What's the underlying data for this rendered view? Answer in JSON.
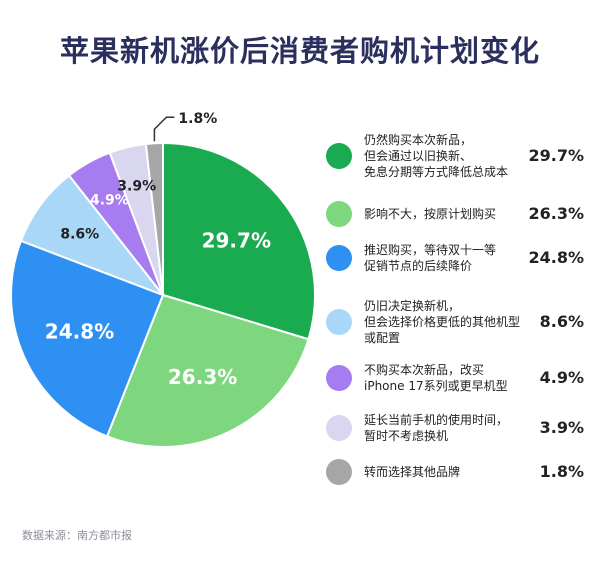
{
  "title": "苹果新机涨价后消费者购机计划变化",
  "source": "数据来源：南方都市报",
  "chart_data": {
    "type": "pie",
    "title": "苹果新机涨价后消费者购机计划变化",
    "value_labels": [
      "29.7%",
      "26.3%",
      "24.8%",
      "8.6%",
      "4.9%",
      "3.9%",
      "1.8%"
    ],
    "slices": [
      {
        "label": "仍然购买本次新品，但会通过以旧换新、免息分期等方式降低总成本",
        "label_lines": [
          "仍然购买本次新品，",
          "但会通过以旧换新、",
          "免息分期等方式降低总成本"
        ],
        "value": 29.7,
        "color": "#1aab50"
      },
      {
        "label": "影响不大，按原计划购买",
        "label_lines": [
          "影响不大，按原计划购买"
        ],
        "value": 26.3,
        "color": "#7ed67e"
      },
      {
        "label": "推迟购买，等待双十一等促销节点的后续降价",
        "label_lines": [
          "推迟购买，等待双十一等",
          "促销节点的后续降价"
        ],
        "value": 24.8,
        "color": "#2e90f2"
      },
      {
        "label": "仍旧决定换新机，但会选择价格更低的其他机型或配置",
        "label_lines": [
          "仍旧决定换新机，",
          "但会选择价格更低的其他机型",
          "或配置"
        ],
        "value": 8.6,
        "color": "#a9d7f7"
      },
      {
        "label": "不购买本次新品，改买iPhone 17系列或更早机型",
        "label_lines": [
          "不购买本次新品，改买",
          "iPhone 17系列或更早机型"
        ],
        "value": 4.9,
        "color": "#a67cf0"
      },
      {
        "label": "延长当前手机的使用时间，暂时不考虑换机",
        "label_lines": [
          "延长当前手机的使用时间，",
          "暂时不考虑换机"
        ],
        "value": 3.9,
        "color": "#d9d6f0"
      },
      {
        "label": "转而选择其他品牌",
        "label_lines": [
          "转而选择其他品牌"
        ],
        "value": 1.8,
        "color": "#a6a6a6"
      }
    ]
  }
}
